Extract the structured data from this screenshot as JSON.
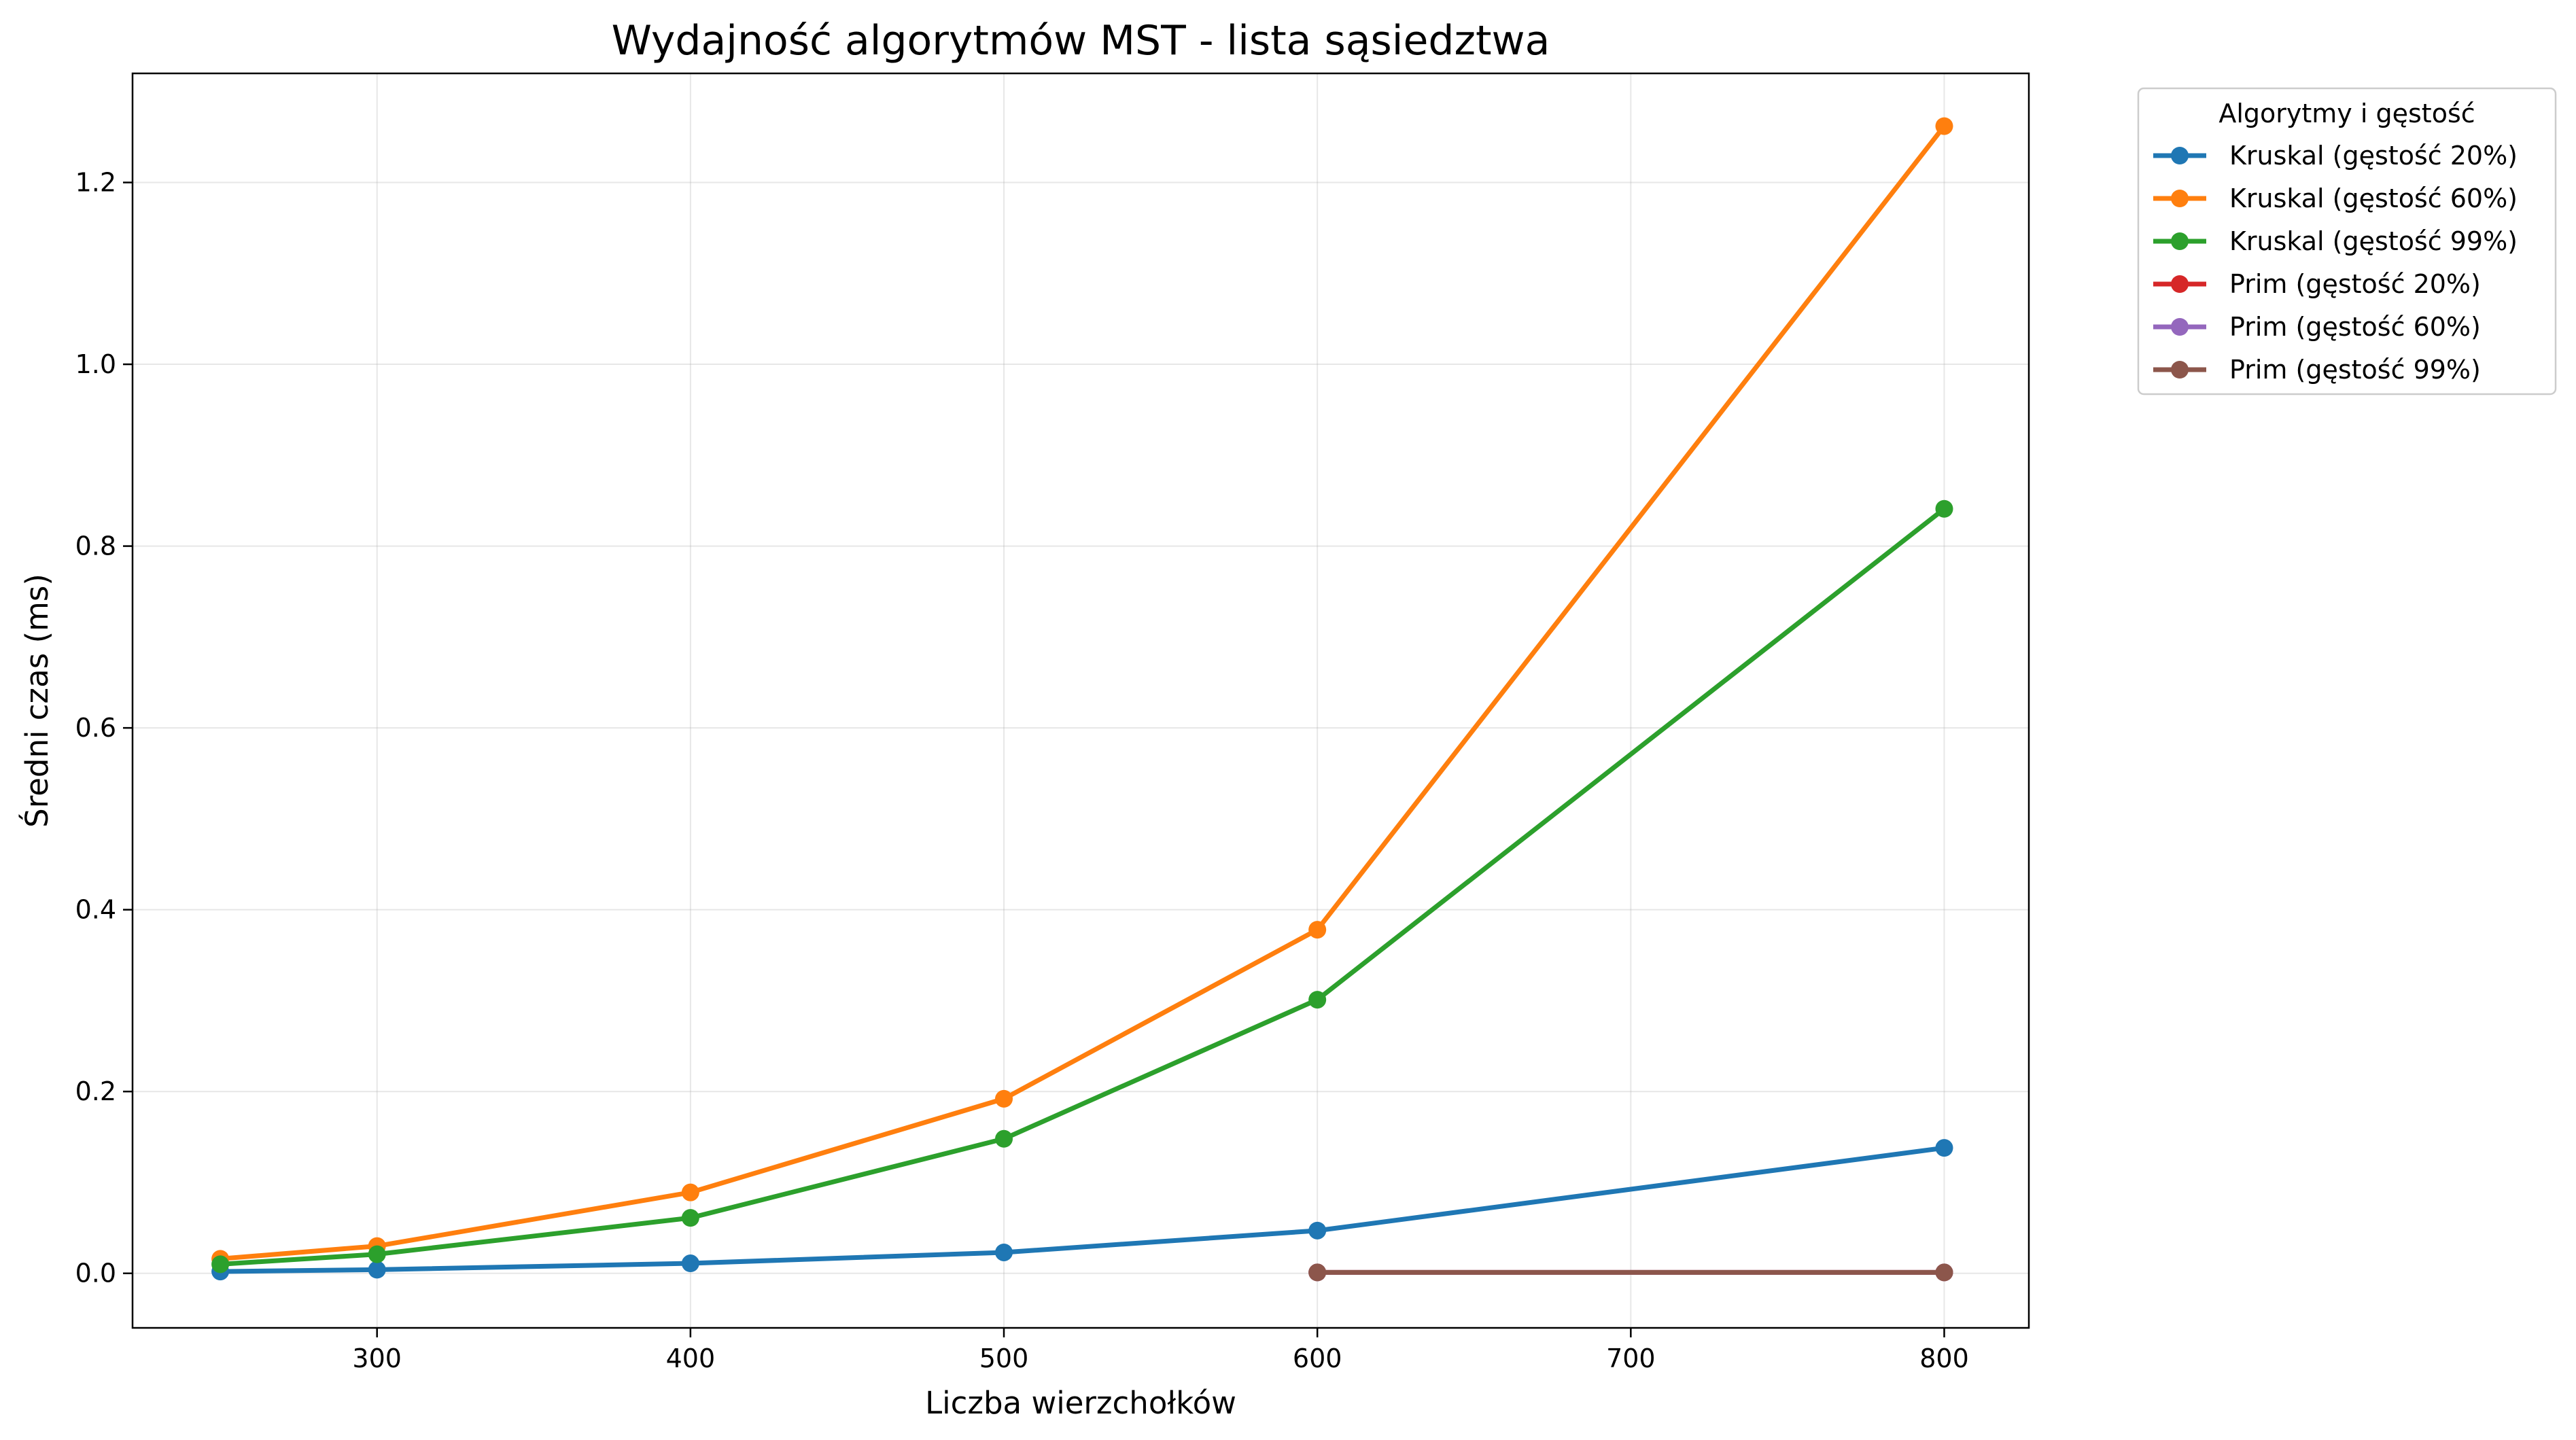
{
  "chart_data": {
    "type": "line",
    "title": "Wydajność algorytmów MST - lista sąsiedztwa",
    "xlabel": "Liczba wierzchołków",
    "ylabel": "Średni czas (ms)",
    "xlim": [
      222,
      827
    ],
    "ylim": [
      -0.06,
      1.32
    ],
    "xticks": [
      300,
      400,
      500,
      600,
      700,
      800
    ],
    "yticks": [
      0.0,
      0.2,
      0.4,
      0.6,
      0.8,
      1.0,
      1.2
    ],
    "xtick_labels": [
      "300",
      "400",
      "500",
      "600",
      "700",
      "800"
    ],
    "ytick_labels": [
      "0.0",
      "0.2",
      "0.4",
      "0.6",
      "0.8",
      "1.0",
      "1.2"
    ],
    "grid": true,
    "legend_title": "Algorytmy i gęstość",
    "legend_placement": "outside-top-right",
    "series": [
      {
        "name": "Kruskal (gęstość 20%)",
        "color": "#1f77b4",
        "x": [
          250,
          300,
          400,
          500,
          600,
          800
        ],
        "y": [
          0.002,
          0.004,
          0.011,
          0.023,
          0.047,
          0.138
        ]
      },
      {
        "name": "Kruskal (gęstość 60%)",
        "color": "#ff7f0e",
        "x": [
          250,
          300,
          400,
          500,
          600,
          800
        ],
        "y": [
          0.016,
          0.03,
          0.089,
          0.192,
          0.378,
          1.262
        ]
      },
      {
        "name": "Kruskal (gęstość 99%)",
        "color": "#2ca02c",
        "x": [
          250,
          300,
          400,
          500,
          600,
          800
        ],
        "y": [
          0.01,
          0.021,
          0.061,
          0.148,
          0.301,
          0.841
        ]
      },
      {
        "name": "Prim (gęstość 20%)",
        "color": "#d62728",
        "x": [
          600,
          800
        ],
        "y": [
          0.001,
          0.001
        ]
      },
      {
        "name": "Prim (gęstość 60%)",
        "color": "#9467bd",
        "x": [
          600,
          800
        ],
        "y": [
          0.001,
          0.001
        ]
      },
      {
        "name": "Prim (gęstość 99%)",
        "color": "#8c564b",
        "x": [
          600,
          800
        ],
        "y": [
          0.001,
          0.001
        ]
      }
    ]
  }
}
